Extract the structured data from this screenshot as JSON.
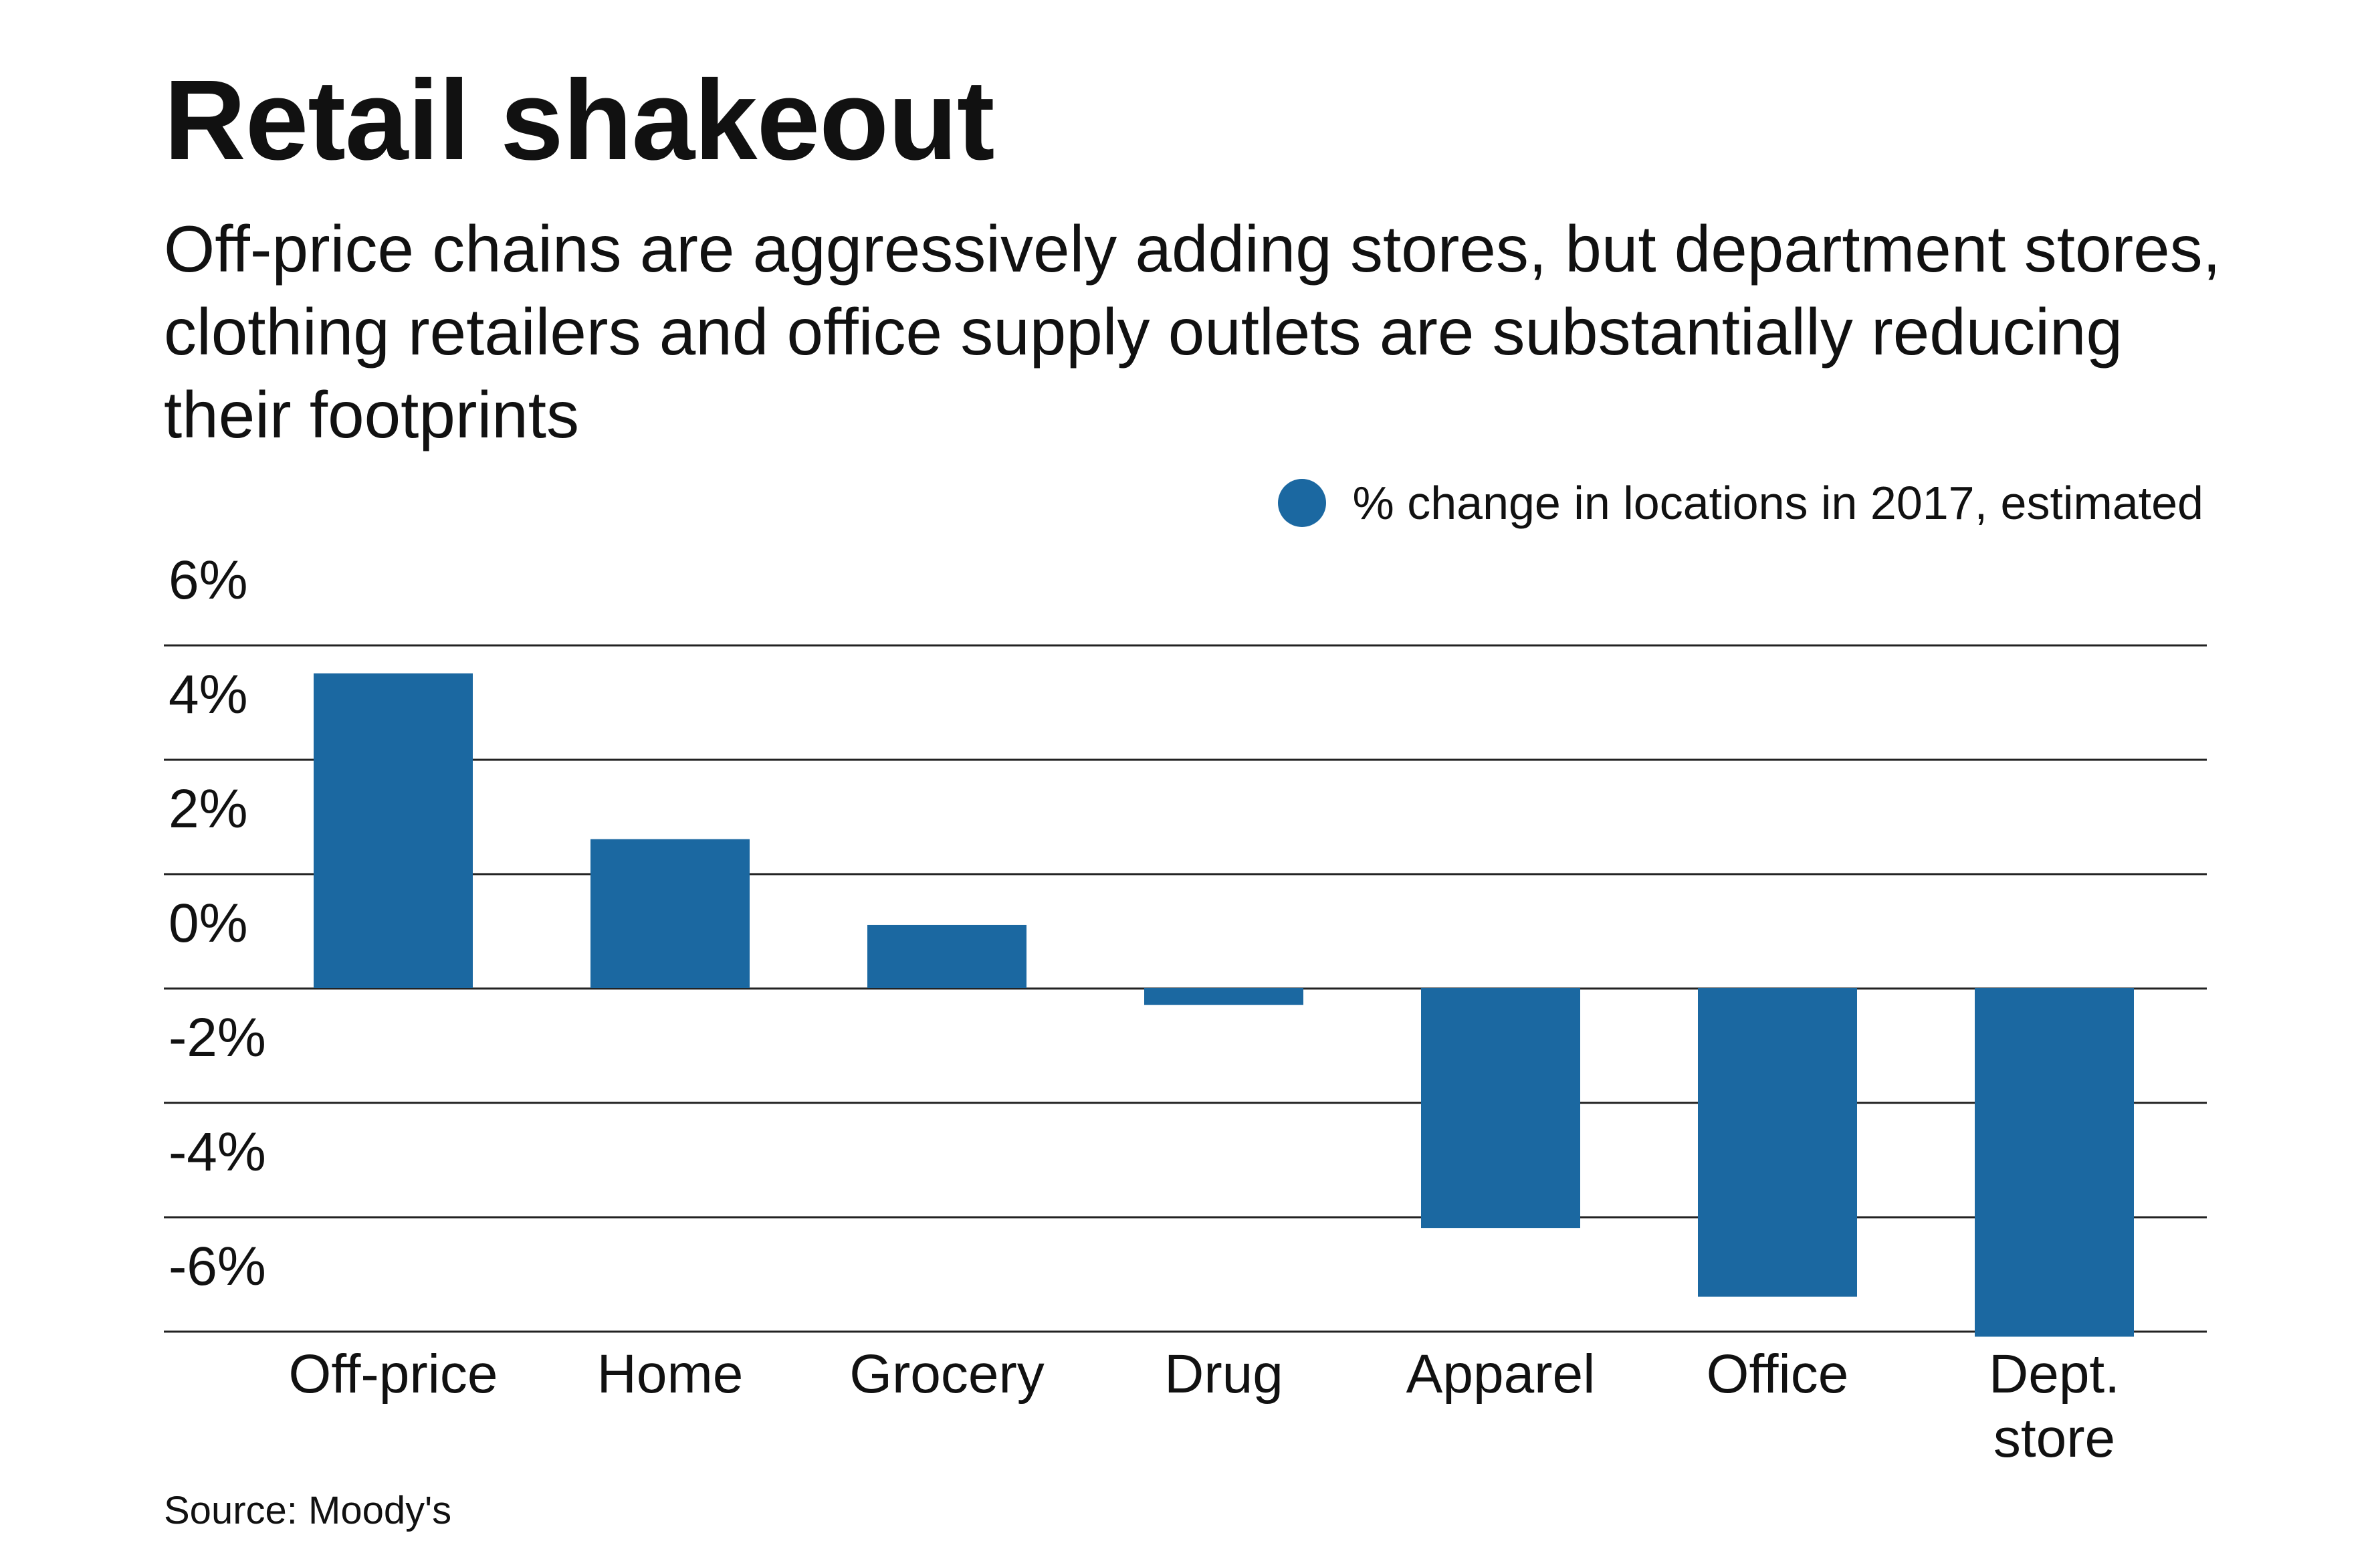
{
  "header": {
    "title": "Retail shakeout",
    "subtitle": "Off-price chains are aggressively adding stores, but department stores, clothing retailers and office supply outlets are substantially reducing their footprints"
  },
  "legend": {
    "label": "% change in locations in 2017, estimated",
    "color": "#1b68a1"
  },
  "source": "Source: Moody's",
  "chart_data": {
    "type": "bar",
    "categories": [
      "Off-price",
      "Home",
      "Grocery",
      "Drug",
      "Apparel",
      "Office",
      "Dept. store"
    ],
    "series": [
      {
        "name": "% change in locations in 2017, estimated",
        "values": [
          5.5,
          2.6,
          1.1,
          -0.3,
          -4.2,
          -5.4,
          -6.1
        ],
        "color": "#1b68a1"
      }
    ],
    "yticks": [
      6,
      4,
      2,
      0,
      -2,
      -4,
      -6
    ],
    "ytick_labels": [
      "6%",
      "4%",
      "2%",
      "0%",
      "-2%",
      "-4%",
      "-6%"
    ],
    "ylim": [
      -6,
      6
    ],
    "grid": true,
    "legend_position": "top-right",
    "xlabel": "",
    "ylabel": ""
  }
}
